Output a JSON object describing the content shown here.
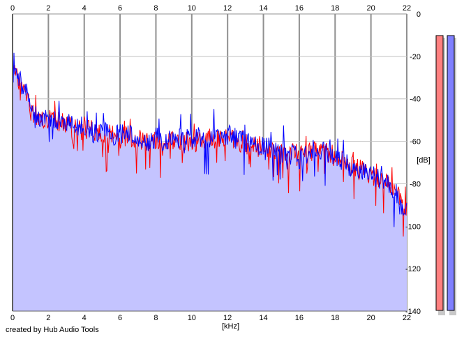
{
  "credit": "created by Hub Audio Tools",
  "chart_data": {
    "type": "line",
    "xlabel": "[kHz]",
    "ylabel": "[dB]",
    "xlim": [
      0,
      22
    ],
    "ylim": [
      -140,
      0
    ],
    "x_ticks": [
      0,
      2,
      4,
      6,
      8,
      10,
      12,
      14,
      16,
      18,
      20,
      22
    ],
    "y_ticks": [
      0,
      -20,
      -40,
      -60,
      -80,
      -100,
      -120,
      -140
    ],
    "grid": true,
    "fill_color": "#c4c4ff",
    "series": [
      {
        "color": "#ff0000",
        "x": [
          0,
          0.25,
          0.5,
          0.75,
          1,
          1.5,
          2,
          2.5,
          3,
          3.5,
          4,
          4.5,
          5,
          5.5,
          6,
          6.5,
          7,
          7.5,
          8,
          8.5,
          9,
          9.5,
          10,
          10.5,
          11,
          11.5,
          12,
          12.5,
          13,
          13.5,
          14,
          14.5,
          15,
          15.5,
          16,
          16.5,
          17,
          17.5,
          18,
          18.5,
          19,
          19.5,
          20,
          20.5,
          21,
          21.5,
          22
        ],
        "values": [
          -30,
          -28,
          -35,
          -38,
          -45,
          -50,
          -50,
          -51,
          -52,
          -54,
          -55,
          -55,
          -56,
          -57,
          -57,
          -58,
          -59,
          -59,
          -59,
          -60,
          -60,
          -60,
          -60,
          -60,
          -59,
          -59,
          -58,
          -60,
          -61,
          -62,
          -63,
          -64,
          -66,
          -67,
          -67,
          -65,
          -64,
          -65,
          -67,
          -69,
          -72,
          -74,
          -76,
          -77,
          -80,
          -85,
          -92
        ]
      },
      {
        "color": "#0000ff",
        "x": [
          0,
          0.25,
          0.5,
          0.75,
          1,
          1.5,
          2,
          2.5,
          3,
          3.5,
          4,
          4.5,
          5,
          5.5,
          6,
          6.5,
          7,
          7.5,
          8,
          8.5,
          9,
          9.5,
          10,
          10.5,
          11,
          11.5,
          12,
          12.5,
          13,
          13.5,
          14,
          14.5,
          15,
          15.5,
          16,
          16.5,
          17,
          17.5,
          18,
          18.5,
          19,
          19.5,
          20,
          20.5,
          21,
          21.5,
          22
        ],
        "values": [
          -28,
          -26,
          -33,
          -36,
          -44,
          -49,
          -50,
          -50,
          -52,
          -52,
          -54,
          -56,
          -55,
          -58,
          -57,
          -57,
          -59,
          -60,
          -58,
          -61,
          -59,
          -58,
          -59,
          -58,
          -58,
          -58,
          -57,
          -59,
          -60,
          -62,
          -63,
          -63,
          -65,
          -66,
          -68,
          -66,
          -63,
          -66,
          -66,
          -70,
          -73,
          -73,
          -75,
          -78,
          -79,
          -86,
          -94
        ]
      }
    ],
    "level_bars": [
      {
        "color": "#ff8080"
      },
      {
        "color": "#8080ff"
      }
    ]
  }
}
